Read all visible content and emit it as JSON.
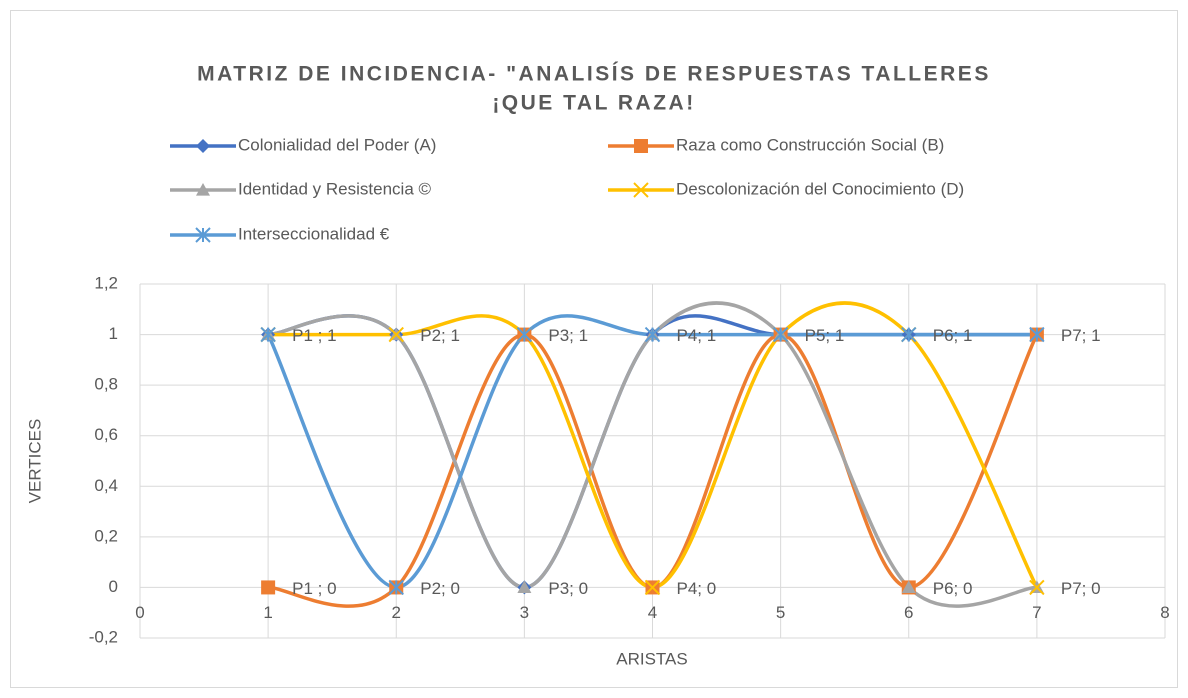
{
  "chart_data": {
    "type": "scatter-smooth",
    "title": [
      "MATRIZ DE INCIDENCIA- \"ANALISÍS DE RESPUESTAS TALLERES",
      "¡QUE TAL RAZA!"
    ],
    "x_label": "ARISTAS",
    "y_label": "VERTICES",
    "x": [
      1,
      2,
      3,
      4,
      5,
      6,
      7
    ],
    "series": [
      {
        "name": "Colonialidad del Poder (A)",
        "color": "#4472c4",
        "marker": "diamond",
        "values": [
          1,
          1,
          0,
          1,
          1,
          1,
          1
        ]
      },
      {
        "name": "Raza como Construcción Social (B)",
        "color": "#ed7d31",
        "marker": "square",
        "values": [
          0,
          0,
          1,
          0,
          1,
          0,
          1
        ]
      },
      {
        "name": "Identidad y Resistencia ©",
        "color": "#a5a5a5",
        "marker": "triangle",
        "values": [
          1,
          1,
          0,
          1,
          1,
          0,
          0
        ]
      },
      {
        "name": "Descolonización del Conocimiento (D)",
        "color": "#ffc000",
        "marker": "x",
        "values": [
          1,
          1,
          1,
          0,
          1,
          1,
          0
        ]
      },
      {
        "name": "Interseccionalidad €",
        "color": "#5b9bd5",
        "marker": "star",
        "values": [
          1,
          0,
          1,
          1,
          1,
          1,
          1
        ]
      }
    ],
    "annotations": [
      {
        "x": 1,
        "y": 1,
        "text": "P1 ; 1"
      },
      {
        "x": 2,
        "y": 1,
        "text": "P2; 1"
      },
      {
        "x": 3,
        "y": 1,
        "text": "P3; 1"
      },
      {
        "x": 4,
        "y": 1,
        "text": "P4; 1"
      },
      {
        "x": 5,
        "y": 1,
        "text": "P5; 1"
      },
      {
        "x": 6,
        "y": 1,
        "text": "P6; 1"
      },
      {
        "x": 7,
        "y": 1,
        "text": "P7; 1"
      },
      {
        "x": 1,
        "y": 0,
        "text": "P1 ; 0"
      },
      {
        "x": 2,
        "y": 0,
        "text": "P2; 0"
      },
      {
        "x": 3,
        "y": 0,
        "text": "P3; 0"
      },
      {
        "x": 4,
        "y": 0,
        "text": "P4; 0"
      },
      {
        "x": 6,
        "y": 0,
        "text": "P6; 0"
      },
      {
        "x": 7,
        "y": 0,
        "text": "P7; 0"
      }
    ],
    "xlim": [
      0,
      8
    ],
    "xticks": [
      0,
      1,
      2,
      3,
      4,
      5,
      6,
      7,
      8
    ],
    "ylim": [
      -0.2,
      1.2
    ],
    "yticks": [
      {
        "value": -0.2,
        "label": "-0,2"
      },
      0,
      {
        "value": 0.2,
        "label": "0,2"
      },
      {
        "value": 0.4,
        "label": "0,4"
      },
      {
        "value": 0.6,
        "label": "0,6"
      },
      {
        "value": 0.8,
        "label": "0,8"
      },
      1,
      {
        "value": 1.2,
        "label": "1,2"
      }
    ],
    "grid": true,
    "legend": "top",
    "smooth": true
  }
}
